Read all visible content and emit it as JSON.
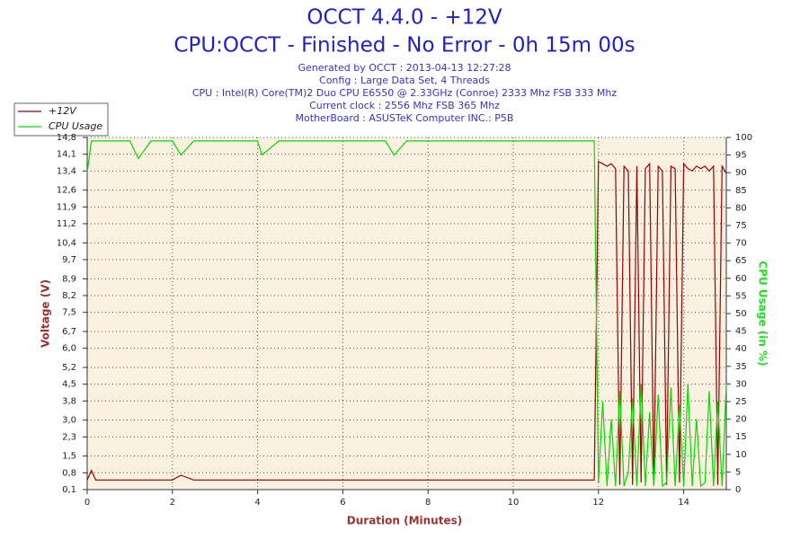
{
  "chart_data": {
    "type": "line",
    "title": "OCCT 4.4.0 - +12V",
    "subtitle": "CPU:OCCT - Finished - No Error - 0h 15m 00s",
    "info_lines": [
      "Generated by OCCT : 2013-04-13 12:27:28",
      "Config : Large Data Set, 4 Threads",
      "CPU : Intel(R) Core(TM)2 Duo CPU E6550 @ 2.33GHz (Conroe) 2333 Mhz FSB 333 Mhz",
      "Current clock : 2556 Mhz FSB 365 Mhz",
      "MotherBoard : ASUSTeK Computer INC.: P5B"
    ],
    "x_label": "Duration (Minutes)",
    "y_label": "Voltage (V)",
    "y2_label": "CPU Usage (in %)",
    "legend": "top-left",
    "grid": true,
    "xlim": [
      0,
      15
    ],
    "xticks": [
      0,
      2,
      4,
      6,
      8,
      10,
      12,
      14
    ],
    "ylim": [
      0.1,
      14.8
    ],
    "yticks": [
      {
        "value": 0.1,
        "label": "0,1"
      },
      {
        "value": 0.8,
        "label": "0,8"
      },
      {
        "value": 1.5,
        "label": "1,5"
      },
      {
        "value": 2.3,
        "label": "2,3"
      },
      {
        "value": 3.0,
        "label": "3,0"
      },
      {
        "value": 3.8,
        "label": "3,8"
      },
      {
        "value": 4.5,
        "label": "4,5"
      },
      {
        "value": 5.2,
        "label": "5,2"
      },
      {
        "value": 6.0,
        "label": "6,0"
      },
      {
        "value": 6.7,
        "label": "6,7"
      },
      {
        "value": 7.5,
        "label": "7,5"
      },
      {
        "value": 8.2,
        "label": "8,2"
      },
      {
        "value": 8.9,
        "label": "8,9"
      },
      {
        "value": 9.7,
        "label": "9,7"
      },
      {
        "value": 10.4,
        "label": "10,4"
      },
      {
        "value": 11.2,
        "label": "11,2"
      },
      {
        "value": 11.9,
        "label": "11,9"
      },
      {
        "value": 12.6,
        "label": "12,6"
      },
      {
        "value": 13.4,
        "label": "13,4"
      },
      {
        "value": 14.1,
        "label": "14,1"
      },
      {
        "value": 14.8,
        "label": "14,8"
      }
    ],
    "y2lim": [
      0,
      100
    ],
    "y2ticks": [
      0,
      5,
      10,
      15,
      20,
      25,
      30,
      35,
      40,
      45,
      50,
      55,
      60,
      65,
      70,
      75,
      80,
      85,
      90,
      95,
      100
    ],
    "x": [
      0,
      0.1,
      0.2,
      0.5,
      1,
      1.2,
      1.5,
      2,
      2.2,
      2.5,
      3,
      3.5,
      4,
      4.1,
      4.5,
      5,
      5.5,
      6,
      6.5,
      7,
      7.2,
      7.5,
      8,
      8.5,
      9,
      9.5,
      10,
      10.5,
      11,
      11.5,
      11.9,
      12,
      12.1,
      12.2,
      12.3,
      12.4,
      12.5,
      12.6,
      12.7,
      12.8,
      12.9,
      13,
      13.1,
      13.2,
      13.3,
      13.4,
      13.5,
      13.6,
      13.7,
      13.8,
      13.9,
      14,
      14.1,
      14.2,
      14.3,
      14.4,
      14.5,
      14.6,
      14.7,
      14.8,
      14.9,
      15
    ],
    "series": [
      {
        "name": "+12V",
        "color": "#990000",
        "values": [
          0.5,
          0.9,
          0.5,
          0.5,
          0.5,
          0.5,
          0.5,
          0.5,
          0.7,
          0.5,
          0.5,
          0.5,
          0.5,
          0.5,
          0.5,
          0.5,
          0.5,
          0.5,
          0.5,
          0.5,
          0.5,
          0.5,
          0.5,
          0.5,
          0.5,
          0.5,
          0.5,
          0.5,
          0.5,
          0.5,
          0.5,
          13.8,
          13.7,
          13.6,
          13.7,
          13.5,
          0.3,
          13.6,
          13.4,
          0.3,
          13.6,
          0.4,
          13.5,
          13.7,
          0.3,
          13.6,
          13.4,
          0.3,
          13.6,
          13.5,
          0.4,
          13.7,
          13.5,
          13.4,
          13.6,
          13.5,
          13.6,
          13.4,
          13.6,
          0.3,
          13.6,
          13.3
        ]
      },
      {
        "name": "CPU Usage",
        "color": "#00dd00",
        "axis": "y2",
        "values": [
          90,
          99,
          99,
          99,
          99,
          94,
          99,
          99,
          95,
          99,
          99,
          99,
          99,
          95,
          99,
          99,
          99,
          99,
          99,
          99,
          95,
          99,
          99,
          99,
          99,
          99,
          99,
          99,
          99,
          99,
          99,
          2,
          25,
          1,
          20,
          1,
          28,
          1,
          5,
          26,
          1,
          30,
          1,
          22,
          1,
          27,
          1,
          2,
          29,
          1,
          24,
          1,
          30,
          1,
          20,
          1,
          2,
          28,
          1,
          25,
          1,
          30
        ]
      }
    ]
  }
}
